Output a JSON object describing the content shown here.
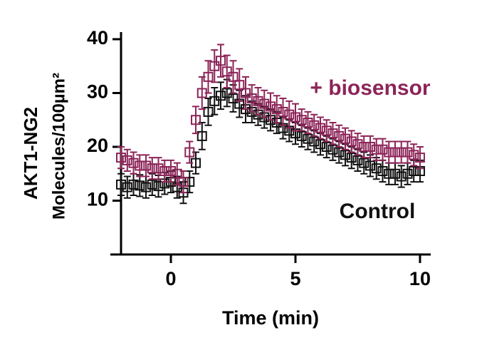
{
  "chart_data": {
    "type": "scatter",
    "xlabel": "Time (min)",
    "ylabel": [
      "AKT1-NG2",
      "Molecules/100µm²"
    ],
    "xlim": [
      -2.43,
      10.43
    ],
    "ylim": [
      0,
      40
    ],
    "xticks": [
      0,
      5,
      10
    ],
    "yticks": [
      10,
      20,
      30,
      40
    ],
    "x": [
      -2,
      -1.75,
      -1.5,
      -1.25,
      -1,
      -0.75,
      -0.5,
      -0.25,
      0,
      0.25,
      0.5,
      0.75,
      1,
      1.25,
      1.5,
      1.75,
      2,
      2.25,
      2.5,
      2.75,
      3,
      3.25,
      3.5,
      3.75,
      4,
      4.25,
      4.5,
      4.75,
      5,
      5.25,
      5.5,
      5.75,
      6,
      6.25,
      6.5,
      6.75,
      7,
      7.25,
      7.5,
      7.75,
      8,
      8.25,
      8.5,
      8.75,
      9,
      9.25,
      9.5,
      9.75,
      10
    ],
    "series": [
      {
        "name": "Control",
        "color": "#111111",
        "values": [
          13,
          12.5,
          13,
          12.8,
          12.5,
          13,
          12.7,
          13.2,
          13.5,
          12.5,
          11.5,
          13.5,
          17,
          22,
          26.5,
          28.5,
          29.5,
          30,
          29,
          28,
          27,
          26.5,
          26,
          25.5,
          25,
          24.5,
          23.5,
          23,
          22.5,
          22,
          21.5,
          21,
          20.5,
          20,
          19.5,
          19,
          18.5,
          18,
          17.5,
          17,
          16.5,
          16,
          15.5,
          15,
          15,
          14.5,
          15,
          15.5,
          15.5
        ],
        "errors": [
          2,
          2,
          2,
          2,
          2,
          2,
          2,
          2,
          2,
          2,
          2,
          2,
          2,
          2.5,
          2.5,
          2.5,
          2.5,
          2.5,
          2.5,
          2.5,
          2.5,
          2,
          2,
          2,
          2,
          2,
          2,
          2,
          2,
          2,
          2,
          2,
          2,
          2,
          2,
          2,
          2,
          2,
          2,
          2,
          2,
          2,
          2,
          2,
          2,
          2,
          2,
          2,
          2
        ]
      },
      {
        "name": "+ biosensor",
        "color": "#8c2458",
        "values": [
          18,
          17.5,
          17,
          16.5,
          16.5,
          16,
          16,
          15.5,
          15.5,
          15,
          13.5,
          19,
          25,
          30,
          33,
          35,
          36,
          34,
          33,
          31.5,
          30,
          29,
          28.5,
          28,
          27.5,
          27,
          26.5,
          26,
          25.5,
          25,
          24.5,
          24,
          23.5,
          23,
          22.5,
          22,
          21.5,
          21,
          20.5,
          20,
          20,
          19.5,
          19.5,
          19,
          19,
          19,
          19,
          18.5,
          18
        ],
        "errors": [
          2,
          2,
          2,
          2,
          2,
          2,
          2,
          2,
          2,
          2,
          2,
          2,
          2.5,
          3,
          3,
          3,
          3,
          3,
          3,
          3,
          3,
          2.5,
          2.5,
          2.5,
          2.5,
          2.5,
          2.5,
          2.5,
          2.5,
          2,
          2,
          2,
          2,
          2,
          2,
          2,
          2,
          2,
          2,
          2,
          2,
          2,
          2,
          2,
          2,
          2,
          2,
          2,
          2
        ]
      }
    ]
  }
}
